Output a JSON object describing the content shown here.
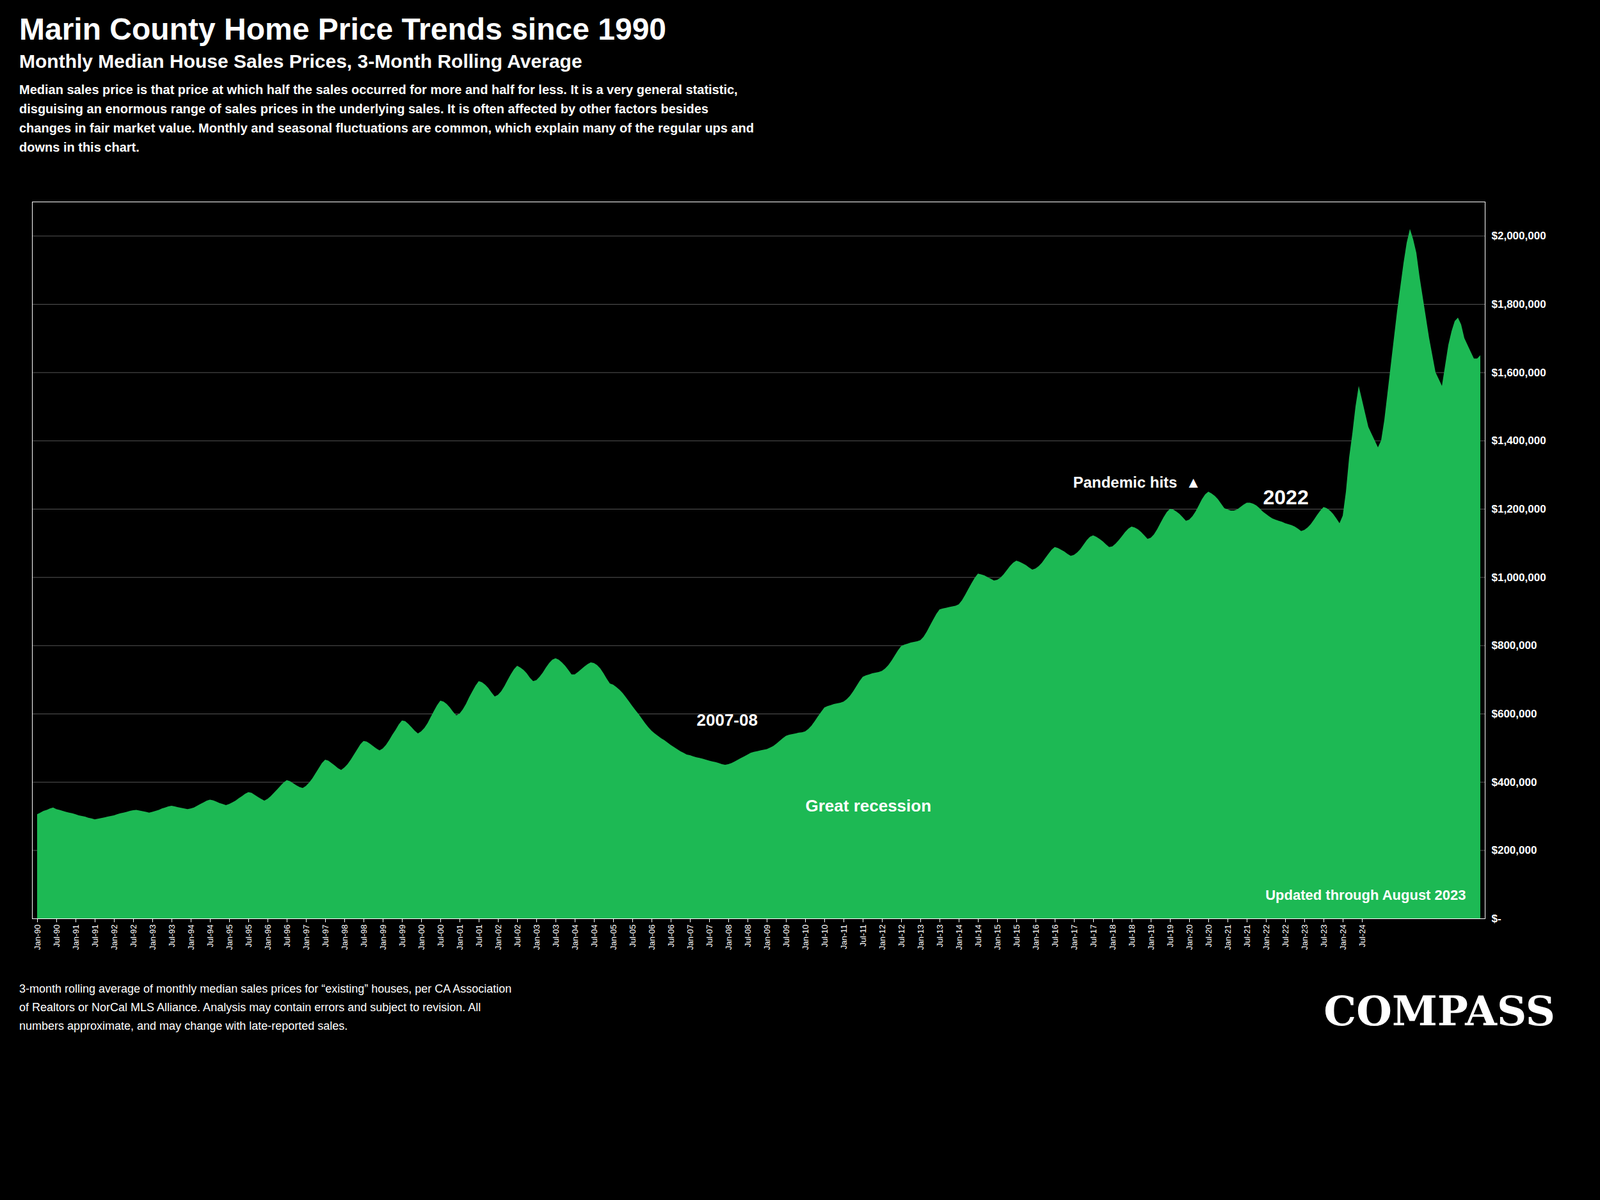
{
  "chart_data": {
    "type": "area",
    "title": "Marin County Home Price Trends since 1990",
    "subtitle": "Monthly Median House Sales Prices, 3-Month Rolling Average",
    "note": "Median sales price is that price at which half the sales occurred for more and half for less. It is a very general statistic, disguising an enormous range of sales prices in the underlying sales. It is often affected by other factors besides changes in fair market value. Monthly and seasonal fluctuations are common, which explain many of the regular ups and downs in this chart.",
    "annotations": [
      "2007-08",
      "Great recession",
      "Pandemic hits  ▲",
      "2022",
      "Updated through August 2023"
    ],
    "footnote": [
      "3-month rolling average of monthly median sales prices for “existing” houses, per CA Association",
      "of Realtors or NorCal MLS Alliance. Analysis may contain errors and subject to revision. All",
      "numbers approximate, and may change with late-reported sales."
    ],
    "logo": "COMPASS",
    "color": "#1db954",
    "grid": true,
    "ylim": [
      0,
      2100000
    ],
    "yticks": [
      {
        "value": 0,
        "label": "$-"
      },
      {
        "value": 200000,
        "label": "$200,000"
      },
      {
        "value": 400000,
        "label": "$400,000"
      },
      {
        "value": 600000,
        "label": "$600,000"
      },
      {
        "value": 800000,
        "label": "$800,000"
      },
      {
        "value": 1000000,
        "label": "$1,000,000"
      },
      {
        "value": 1200000,
        "label": "$1,200,000"
      },
      {
        "value": 1400000,
        "label": "$1,400,000"
      },
      {
        "value": 1600000,
        "label": "$1,600,000"
      },
      {
        "value": 1800000,
        "label": "$1,800,000"
      },
      {
        "value": 2000000,
        "label": "$2,000,000"
      }
    ],
    "categories": [
      "Jan-90",
      null,
      null,
      null,
      null,
      null,
      "Jul-90",
      null,
      null,
      null,
      null,
      null,
      "Jan-91",
      null,
      null,
      null,
      null,
      null,
      "Jul-91",
      null,
      null,
      null,
      null,
      null,
      "Jan-92",
      null,
      null,
      null,
      null,
      null,
      "Jul-92",
      null,
      null,
      null,
      null,
      null,
      "Jan-93",
      null,
      null,
      null,
      null,
      null,
      "Jul-93",
      null,
      null,
      null,
      null,
      null,
      "Jan-94",
      null,
      null,
      null,
      null,
      null,
      "Jul-94",
      null,
      null,
      null,
      null,
      null,
      "Jan-95",
      null,
      null,
      null,
      null,
      null,
      "Jul-95",
      null,
      null,
      null,
      null,
      null,
      "Jan-96",
      null,
      null,
      null,
      null,
      null,
      "Jul-96",
      null,
      null,
      null,
      null,
      null,
      "Jan-97",
      null,
      null,
      null,
      null,
      null,
      "Jul-97",
      null,
      null,
      null,
      null,
      null,
      "Jan-98",
      null,
      null,
      null,
      null,
      null,
      "Jul-98",
      null,
      null,
      null,
      null,
      null,
      "Jan-99",
      null,
      null,
      null,
      null,
      null,
      "Jul-99",
      null,
      null,
      null,
      null,
      null,
      "Jan-00",
      null,
      null,
      null,
      null,
      null,
      "Jul-00",
      null,
      null,
      null,
      null,
      null,
      "Jan-01",
      null,
      null,
      null,
      null,
      null,
      "Jul-01",
      null,
      null,
      null,
      null,
      null,
      "Jan-02",
      null,
      null,
      null,
      null,
      null,
      "Jul-02",
      null,
      null,
      null,
      null,
      null,
      "Jan-03",
      null,
      null,
      null,
      null,
      null,
      "Jul-03",
      null,
      null,
      null,
      null,
      null,
      "Jan-04",
      null,
      null,
      null,
      null,
      null,
      "Jul-04",
      null,
      null,
      null,
      null,
      null,
      "Jan-05",
      null,
      null,
      null,
      null,
      null,
      "Jul-05",
      null,
      null,
      null,
      null,
      null,
      "Jan-06",
      null,
      null,
      null,
      null,
      null,
      "Jul-06",
      null,
      null,
      null,
      null,
      null,
      "Jan-07",
      null,
      null,
      null,
      null,
      null,
      "Jul-07",
      null,
      null,
      null,
      null,
      null,
      "Jan-08",
      null,
      null,
      null,
      null,
      null,
      "Jul-08",
      null,
      null,
      null,
      null,
      null,
      "Jan-09",
      null,
      null,
      null,
      null,
      null,
      "Jul-09",
      null,
      null,
      null,
      null,
      null,
      "Jan-10",
      null,
      null,
      null,
      null,
      null,
      "Jul-10",
      null,
      null,
      null,
      null,
      null,
      "Jan-11",
      null,
      null,
      null,
      null,
      null,
      "Jul-11",
      null,
      null,
      null,
      null,
      null,
      "Jan-12",
      null,
      null,
      null,
      null,
      null,
      "Jul-12",
      null,
      null,
      null,
      null,
      null,
      "Jan-13",
      null,
      null,
      null,
      null,
      null,
      "Jul-13",
      null,
      null,
      null,
      null,
      null,
      "Jan-14",
      null,
      null,
      null,
      null,
      null,
      "Jul-14",
      null,
      null,
      null,
      null,
      null,
      "Jan-15",
      null,
      null,
      null,
      null,
      null,
      "Jul-15",
      null,
      null,
      null,
      null,
      null,
      "Jan-16",
      null,
      null,
      null,
      null,
      null,
      "Jul-16",
      null,
      null,
      null,
      null,
      null,
      "Jan-17",
      null,
      null,
      null,
      null,
      null,
      "Jul-17",
      null,
      null,
      null,
      null,
      null,
      "Jan-18",
      null,
      null,
      null,
      null,
      null,
      "Jul-18",
      null,
      null,
      null,
      null,
      null,
      "Jan-19",
      null,
      null,
      null,
      null,
      null,
      "Jul-19",
      null,
      null,
      null,
      null,
      null,
      "Jan-20",
      null,
      null,
      null,
      null,
      null,
      "Jul-20",
      null,
      null,
      null,
      null,
      null,
      "Jan-21",
      null,
      null,
      null,
      null,
      null,
      "Jul-21",
      null,
      null,
      null,
      null,
      null,
      "Jan-22",
      null,
      null,
      null,
      null,
      null,
      "Jul-22",
      null,
      null,
      null,
      null,
      null,
      "Jan-23",
      null,
      null,
      null,
      null,
      null,
      "Jul-23",
      null,
      null,
      null,
      null,
      null,
      "Jan-24",
      null,
      null,
      null,
      null,
      null,
      "Jul-24",
      null,
      null,
      null,
      null,
      null,
      null,
      null,
      null,
      null,
      null,
      null,
      null,
      null,
      null,
      null,
      null,
      null,
      null,
      null,
      null,
      null,
      null,
      null,
      null,
      null,
      null,
      null,
      null,
      null,
      null,
      null,
      null,
      null,
      null,
      null,
      null,
      null
    ],
    "values": [
      305000,
      310000,
      315000,
      318000,
      322000,
      325000,
      320000,
      318000,
      315000,
      312000,
      310000,
      308000,
      305000,
      302000,
      300000,
      298000,
      295000,
      293000,
      290000,
      292000,
      294000,
      296000,
      298000,
      300000,
      302000,
      305000,
      308000,
      310000,
      312000,
      315000,
      317000,
      318000,
      316000,
      314000,
      312000,
      310000,
      312000,
      315000,
      318000,
      322000,
      325000,
      328000,
      330000,
      328000,
      326000,
      324000,
      322000,
      320000,
      322000,
      325000,
      330000,
      335000,
      340000,
      345000,
      348000,
      346000,
      342000,
      338000,
      335000,
      332000,
      335000,
      340000,
      345000,
      352000,
      358000,
      365000,
      370000,
      368000,
      362000,
      356000,
      350000,
      345000,
      350000,
      358000,
      368000,
      378000,
      388000,
      398000,
      405000,
      402000,
      396000,
      390000,
      385000,
      382000,
      388000,
      398000,
      410000,
      425000,
      440000,
      455000,
      465000,
      462000,
      455000,
      448000,
      440000,
      435000,
      442000,
      452000,
      465000,
      480000,
      495000,
      510000,
      520000,
      518000,
      512000,
      505000,
      498000,
      492000,
      498000,
      508000,
      522000,
      538000,
      552000,
      568000,
      580000,
      578000,
      570000,
      560000,
      550000,
      542000,
      548000,
      558000,
      572000,
      590000,
      608000,
      625000,
      638000,
      635000,
      628000,
      618000,
      605000,
      595000,
      600000,
      612000,
      628000,
      648000,
      665000,
      682000,
      695000,
      692000,
      685000,
      675000,
      662000,
      650000,
      655000,
      665000,
      680000,
      698000,
      715000,
      730000,
      740000,
      735000,
      728000,
      718000,
      705000,
      695000,
      698000,
      708000,
      720000,
      735000,
      748000,
      758000,
      762000,
      758000,
      750000,
      740000,
      728000,
      715000,
      715000,
      722000,
      730000,
      738000,
      745000,
      750000,
      748000,
      742000,
      732000,
      718000,
      702000,
      688000,
      685000,
      678000,
      670000,
      660000,
      648000,
      635000,
      622000,
      610000,
      598000,
      585000,
      572000,
      560000,
      550000,
      542000,
      535000,
      528000,
      522000,
      515000,
      508000,
      502000,
      496000,
      490000,
      485000,
      480000,
      478000,
      475000,
      472000,
      470000,
      468000,
      465000,
      462000,
      460000,
      458000,
      455000,
      452000,
      450000,
      452000,
      455000,
      460000,
      465000,
      470000,
      475000,
      480000,
      485000,
      488000,
      490000,
      492000,
      494000,
      496000,
      500000,
      505000,
      512000,
      520000,
      528000,
      535000,
      538000,
      540000,
      542000,
      544000,
      545000,
      548000,
      555000,
      565000,
      578000,
      592000,
      605000,
      618000,
      622000,
      625000,
      628000,
      630000,
      632000,
      635000,
      642000,
      652000,
      665000,
      680000,
      695000,
      708000,
      712000,
      715000,
      718000,
      720000,
      722000,
      725000,
      732000,
      742000,
      755000,
      770000,
      785000,
      798000,
      802000,
      805000,
      808000,
      810000,
      812000,
      815000,
      825000,
      840000,
      858000,
      875000,
      892000,
      905000,
      908000,
      910000,
      912000,
      914000,
      916000,
      920000,
      932000,
      948000,
      965000,
      982000,
      998000,
      1010000,
      1008000,
      1005000,
      1000000,
      995000,
      990000,
      992000,
      998000,
      1008000,
      1020000,
      1032000,
      1042000,
      1048000,
      1045000,
      1040000,
      1035000,
      1028000,
      1022000,
      1025000,
      1032000,
      1042000,
      1055000,
      1068000,
      1080000,
      1088000,
      1085000,
      1080000,
      1075000,
      1068000,
      1062000,
      1065000,
      1072000,
      1082000,
      1095000,
      1108000,
      1118000,
      1122000,
      1118000,
      1112000,
      1105000,
      1096000,
      1088000,
      1090000,
      1098000,
      1108000,
      1120000,
      1132000,
      1142000,
      1148000,
      1145000,
      1140000,
      1132000,
      1122000,
      1112000,
      1115000,
      1125000,
      1140000,
      1158000,
      1175000,
      1190000,
      1200000,
      1198000,
      1192000,
      1185000,
      1175000,
      1165000,
      1168000,
      1178000,
      1192000,
      1210000,
      1228000,
      1242000,
      1250000,
      1245000,
      1238000,
      1228000,
      1215000,
      1202000,
      1198000,
      1195000,
      1195000,
      1198000,
      1205000,
      1212000,
      1218000,
      1218000,
      1215000,
      1210000,
      1202000,
      1192000,
      1185000,
      1178000,
      1172000,
      1168000,
      1165000,
      1162000,
      1158000,
      1155000,
      1152000,
      1148000,
      1142000,
      1135000,
      1138000,
      1145000,
      1155000,
      1168000,
      1182000,
      1195000,
      1205000,
      1202000,
      1195000,
      1185000,
      1172000,
      1158000,
      1180000,
      1250000,
      1350000,
      1420000,
      1500000,
      1560000,
      1520000,
      1480000,
      1440000,
      1420000,
      1400000,
      1380000,
      1400000,
      1460000,
      1540000,
      1620000,
      1700000,
      1780000,
      1850000,
      1920000,
      1980000,
      2020000,
      1990000,
      1950000,
      1880000,
      1820000,
      1760000,
      1700000,
      1650000,
      1600000,
      1580000,
      1560000,
      1620000,
      1680000,
      1720000,
      1750000,
      1760000,
      1740000,
      1700000,
      1680000,
      1660000,
      1640000,
      1640000,
      1650000
    ]
  }
}
